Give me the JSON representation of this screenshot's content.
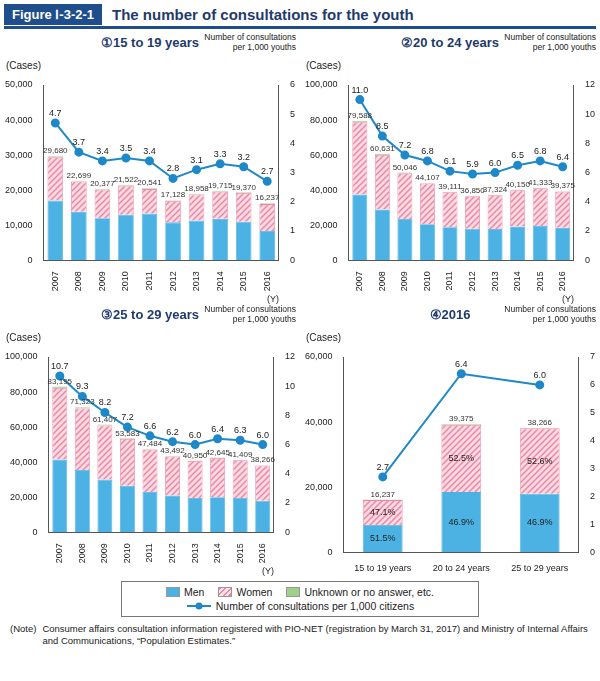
{
  "figure": {
    "label": "Figure Ⅰ-3-2-1",
    "title": "The number of consultations for the youth"
  },
  "note": {
    "label": "(Note)",
    "text": "Consumer affairs consultation information registered with PIO-NET (registration by March 31, 2017) and Ministry of Internal Affairs and Communications, “Population Estimates.”"
  },
  "chart_data": [
    {
      "type": "bar",
      "title": "①15 to 19 years",
      "x_label": "(Y)",
      "y_label": "(Cases)",
      "y2_label": "Number of consultations per 1,000 youths",
      "categories": [
        "2007",
        "2008",
        "2009",
        "2010",
        "2011",
        "2012",
        "2013",
        "2014",
        "2015",
        "2016"
      ],
      "stacked": true,
      "grid": false,
      "ylim": [
        0,
        50000
      ],
      "yticks": [
        0,
        {
          "value": 10000,
          "label": "10,000"
        },
        {
          "value": 20000,
          "label": "20,000"
        },
        {
          "value": 30000,
          "label": "30,000"
        },
        {
          "value": 40000,
          "label": "40,000"
        },
        {
          "value": 50000,
          "label": "50,000"
        }
      ],
      "y2lim": [
        0,
        6
      ],
      "y2ticks": [
        0,
        1,
        2,
        3,
        4,
        5,
        6
      ],
      "totals": [
        29680,
        22699,
        20377,
        21522,
        20541,
        17128,
        18958,
        19715,
        19370,
        16237
      ],
      "total_labels": [
        "29,680",
        "22,699",
        "20,377",
        "21,522",
        "20,541",
        "17,128",
        "18,958",
        "19,715",
        "19,370",
        "16,237"
      ],
      "series": [
        {
          "name": "Men",
          "type": "bar",
          "color": "#4bb2e3",
          "values": [
            17000,
            13800,
            12000,
            13000,
            13300,
            10800,
            11300,
            11800,
            11000,
            8362
          ]
        },
        {
          "name": "Women",
          "type": "bar",
          "color": "#ee87a4",
          "values": [
            12380,
            8649,
            8127,
            8272,
            6991,
            6128,
            7458,
            7715,
            8170,
            7648
          ]
        },
        {
          "name": "Unknown or no answer, etc.",
          "type": "bar",
          "color": "#9fd08a",
          "values": [
            300,
            250,
            250,
            250,
            250,
            200,
            200,
            200,
            200,
            227
          ]
        },
        {
          "name": "Number of consultations per 1,000 citizens",
          "type": "line",
          "axis": "y2",
          "color": "#1e88c8",
          "marker": "circle",
          "line_style": "solid",
          "data_labels": true,
          "values": [
            4.7,
            3.7,
            3.4,
            3.5,
            3.4,
            2.8,
            3.1,
            3.3,
            3.2,
            2.7
          ],
          "value_labels": [
            "4.7",
            "3.7",
            "3.4",
            "3.5",
            "3.4",
            "2.8",
            "3.1",
            "3.3",
            "3.2",
            "2.7"
          ]
        }
      ]
    },
    {
      "type": "bar",
      "title": "②20 to 24 years",
      "x_label": "(Y)",
      "y_label": "(Cases)",
      "y2_label": "Number of consultations per 1,000 youths",
      "categories": [
        "2007",
        "2008",
        "2009",
        "2010",
        "2011",
        "2012",
        "2013",
        "2014",
        "2015",
        "2016"
      ],
      "stacked": true,
      "grid": false,
      "ylim": [
        0,
        100000
      ],
      "yticks": [
        0,
        {
          "value": 20000,
          "label": "20,000"
        },
        {
          "value": 40000,
          "label": "40,000"
        },
        {
          "value": 60000,
          "label": "60,000"
        },
        {
          "value": 80000,
          "label": "80,000"
        },
        {
          "value": 100000,
          "label": "100,000"
        }
      ],
      "y2lim": [
        0,
        12
      ],
      "y2ticks": [
        0,
        2,
        4,
        6,
        8,
        10,
        12
      ],
      "totals": [
        79588,
        60631,
        50046,
        44107,
        39111,
        36850,
        37324,
        40150,
        41333,
        39375
      ],
      "total_labels": [
        "79,588",
        "60,631",
        "50,046",
        "44,107",
        "39,111",
        "36,850",
        "37,324",
        "40,150",
        "41,333",
        "39,375"
      ],
      "series": [
        {
          "name": "Men",
          "type": "bar",
          "color": "#4bb2e3",
          "values": [
            37500,
            29000,
            23500,
            20500,
            18800,
            18000,
            17800,
            19200,
            19500,
            18467
          ]
        },
        {
          "name": "Women",
          "type": "bar",
          "color": "#ee87a4",
          "values": [
            41288,
            31031,
            26146,
            23257,
            20011,
            18550,
            19224,
            20650,
            21533,
            20672
          ]
        },
        {
          "name": "Unknown or no answer, etc.",
          "type": "bar",
          "color": "#9fd08a",
          "values": [
            800,
            600,
            400,
            350,
            300,
            300,
            300,
            300,
            300,
            236
          ]
        },
        {
          "name": "Number of consultations per 1,000 citizens",
          "type": "line",
          "axis": "y2",
          "color": "#1e88c8",
          "marker": "circle",
          "line_style": "solid",
          "data_labels": true,
          "values": [
            11.0,
            8.5,
            7.2,
            6.8,
            6.1,
            5.9,
            6.0,
            6.5,
            6.8,
            6.4
          ],
          "value_labels": [
            "11.0",
            "8.5",
            "7.2",
            "6.8",
            "6.1",
            "5.9",
            "6.0",
            "6.5",
            "6.8",
            "6.4"
          ]
        }
      ]
    },
    {
      "type": "bar",
      "title": "③25 to 29 years",
      "x_label": "(Y)",
      "y_label": "(Cases)",
      "y2_label": "Number of consultations per 1,000 youths",
      "categories": [
        "2007",
        "2008",
        "2009",
        "2010",
        "2011",
        "2012",
        "2013",
        "2014",
        "2015",
        "2016"
      ],
      "stacked": true,
      "grid": false,
      "ylim": [
        0,
        100000
      ],
      "yticks": [
        0,
        {
          "value": 20000,
          "label": "20,000"
        },
        {
          "value": 40000,
          "label": "40,000"
        },
        {
          "value": 60000,
          "label": "60,000"
        },
        {
          "value": 80000,
          "label": "80,000"
        },
        {
          "value": 100000,
          "label": "100,000"
        }
      ],
      "y2lim": [
        0,
        12
      ],
      "y2ticks": [
        0,
        2,
        4,
        6,
        8,
        10,
        12
      ],
      "totals": [
        83195,
        71323,
        61407,
        53583,
        47484,
        43492,
        40950,
        42645,
        41409,
        38266
      ],
      "total_labels": [
        "83,195",
        "71,323",
        "61,407",
        "53,583",
        "47,484",
        "43,492",
        "40,950",
        "42,645",
        "41,409",
        "38,266"
      ],
      "series": [
        {
          "name": "Men",
          "type": "bar",
          "color": "#4bb2e3",
          "values": [
            41500,
            35500,
            30000,
            26500,
            23000,
            21000,
            19500,
            20000,
            19500,
            17947
          ]
        },
        {
          "name": "Women",
          "type": "bar",
          "color": "#ee87a4",
          "values": [
            40795,
            35123,
            30907,
            26683,
            24134,
            22192,
            21150,
            22345,
            21609,
            20128
          ]
        },
        {
          "name": "Unknown or no answer, etc.",
          "type": "bar",
          "color": "#9fd08a",
          "values": [
            900,
            700,
            500,
            400,
            350,
            300,
            300,
            300,
            300,
            191
          ]
        },
        {
          "name": "Number of consultations per 1,000 citizens",
          "type": "line",
          "axis": "y2",
          "color": "#1e88c8",
          "marker": "circle",
          "line_style": "solid",
          "data_labels": true,
          "values": [
            10.7,
            9.3,
            8.2,
            7.2,
            6.6,
            6.2,
            6.0,
            6.4,
            6.3,
            6.0
          ],
          "value_labels": [
            "10.7",
            "9.3",
            "8.2",
            "7.2",
            "6.6",
            "6.2",
            "6.0",
            "6.4",
            "6.3",
            "6.0"
          ]
        }
      ]
    },
    {
      "type": "bar",
      "title": "④2016",
      "y_label": "(Cases)",
      "y2_label": "Number of consultations per 1,000 youths",
      "categories": [
        "15 to 19 years",
        "20 to 24 years",
        "25 to 29 years"
      ],
      "stacked": true,
      "grid": false,
      "ylim": [
        0,
        60000
      ],
      "yticks": [
        0,
        {
          "value": 20000,
          "label": "20,000"
        },
        {
          "value": 40000,
          "label": "40,000"
        },
        {
          "value": 60000,
          "label": "60,000"
        }
      ],
      "y2lim": [
        0,
        7
      ],
      "y2ticks": [
        0,
        1,
        2,
        3,
        4,
        5,
        6,
        7
      ],
      "totals": [
        16237,
        39375,
        38266
      ],
      "total_labels": [
        "16,237",
        "39,375",
        "38,266"
      ],
      "series": [
        {
          "name": "Men",
          "type": "bar",
          "color": "#4bb2e3",
          "values": [
            8362,
            18467,
            17947
          ],
          "share_labels": [
            "51.5%",
            "46.9%",
            "46.9%"
          ]
        },
        {
          "name": "Women",
          "type": "bar",
          "color": "#ee87a4",
          "values": [
            7648,
            20672,
            20128
          ],
          "share_labels": [
            "47.1%",
            "52.5%",
            "52.6%"
          ]
        },
        {
          "name": "Unknown or no answer, etc.",
          "type": "bar",
          "color": "#9fd08a",
          "values": [
            227,
            236,
            191
          ]
        },
        {
          "name": "Number of consultations per 1,000 citizens",
          "type": "line",
          "axis": "y2",
          "color": "#1e88c8",
          "marker": "circle",
          "line_style": "solid",
          "data_labels": true,
          "values": [
            2.7,
            6.4,
            6.0
          ],
          "value_labels": [
            "2.7",
            "6.4",
            "6.0"
          ]
        }
      ]
    }
  ]
}
